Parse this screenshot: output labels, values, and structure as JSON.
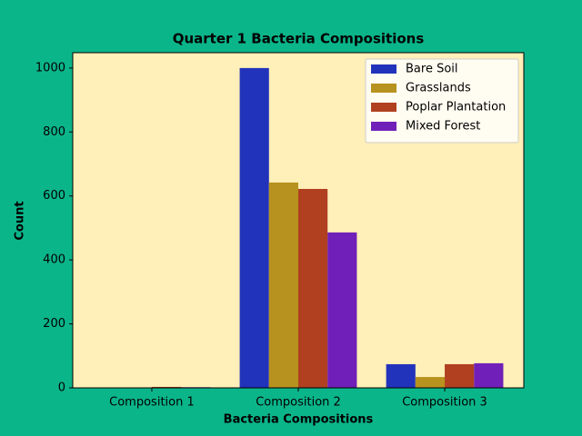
{
  "chart_data": {
    "type": "bar",
    "title": "Quarter 1 Bacteria Compositions",
    "x_label": "Bacteria Compositions",
    "y_label": "Count",
    "categories": [
      "Composition 1",
      "Composition 2",
      "Composition 3"
    ],
    "series": [
      {
        "name": "Bare Soil",
        "color": "#2233bb",
        "values": [
          0,
          1000,
          74
        ]
      },
      {
        "name": "Grasslands",
        "color": "#b8921e",
        "values": [
          0,
          642,
          34
        ]
      },
      {
        "name": "Poplar Plantation",
        "color": "#b04020",
        "values": [
          3,
          622,
          74
        ]
      },
      {
        "name": "Mixed Forest",
        "color": "#7020b8",
        "values": [
          2,
          486,
          77
        ]
      }
    ],
    "ylim": [
      0,
      1048
    ],
    "yticks": [
      0,
      200,
      400,
      600,
      800,
      1000
    ],
    "legend": "upper right",
    "plot_background": "#ffefb8"
  }
}
